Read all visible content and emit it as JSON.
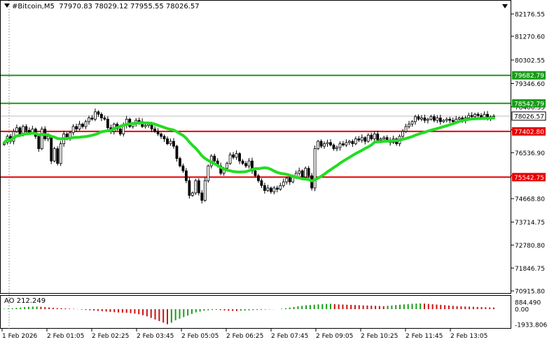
{
  "header": {
    "symbol": "#Bitcoin,M5",
    "ohlc": "77970.83 78029.12 77955.55 78026.57"
  },
  "colors": {
    "bull_candle": "#000000",
    "ma_line": "#22dd22",
    "support_line": "#e60000",
    "resistance_line": "#199b19",
    "ao_up": "#1a9c1a",
    "ao_down": "#cc1111",
    "grid": "#c8c8c8"
  },
  "price_axis": {
    "ticks": [
      "82176.55",
      "81270.60",
      "80302.55",
      "79346.60",
      "78400.35",
      "77470.95",
      "76536.90",
      "75596.85",
      "74668.80",
      "73714.75",
      "72780.80",
      "71846.75",
      "70915.80"
    ],
    "labels": [
      {
        "text": "79682.79",
        "kind": "resistance"
      },
      {
        "text": "78542.79",
        "kind": "resistance"
      },
      {
        "text": "78026.57",
        "kind": "current"
      },
      {
        "text": "77402.80",
        "kind": "support"
      },
      {
        "text": "75542.75",
        "kind": "support"
      }
    ]
  },
  "ao_axis": {
    "title": "AO 212.249",
    "ticks": [
      "884.490",
      "0.00",
      "-1933.806"
    ]
  },
  "time_axis": [
    "1 Feb 2026",
    "2 Feb 01:05",
    "2 Feb 02:25",
    "2 Feb 03:45",
    "2 Feb 05:05",
    "2 Feb 06:25",
    "2 Feb 07:45",
    "2 Feb 09:05",
    "2 Feb 10:25",
    "2 Feb 11:45",
    "2 Feb 13:05"
  ],
  "chart_data": {
    "type": "candlestick",
    "symbol": "#Bitcoin",
    "timeframe": "M5",
    "ylim": [
      70915.8,
      82700
    ],
    "levels": [
      79682.79,
      78542.79,
      77402.8,
      75542.75
    ],
    "current_price": 78026.57,
    "closes": [
      76950,
      77200,
      77000,
      77400,
      77550,
      77300,
      77600,
      77450,
      77350,
      77500,
      77200,
      76700,
      77500,
      77100,
      77200,
      76200,
      76700,
      76100,
      76900,
      77300,
      77100,
      77350,
      77600,
      77500,
      77700,
      77600,
      77800,
      77950,
      77900,
      78200,
      78100,
      77950,
      77900,
      77550,
      77400,
      77700,
      77500,
      77300,
      77650,
      77900,
      77600,
      77700,
      77850,
      77800,
      77600,
      77650,
      77700,
      77500,
      77400,
      77300,
      77200,
      77100,
      76900,
      77000,
      76800,
      76300,
      76000,
      75800,
      75400,
      74800,
      74900,
      75400,
      74900,
      74600,
      75400,
      76000,
      76400,
      76200,
      76000,
      75700,
      75900,
      76100,
      76450,
      76350,
      76500,
      76200,
      76100,
      76000,
      76200,
      75800,
      75600,
      75400,
      75200,
      75000,
      75100,
      74950,
      75100,
      75050,
      75200,
      75350,
      75500,
      75350,
      75550,
      75700,
      75800,
      75550,
      75900,
      75600,
      75100,
      76700,
      77000,
      76800,
      76900,
      76950,
      76850,
      76700,
      76750,
      76900,
      76850,
      76950,
      77000,
      76900,
      77100,
      77050,
      77150,
      77000,
      77250,
      77100,
      77300,
      77050,
      77100,
      77150,
      77050,
      76950,
      77100,
      76900,
      77200,
      77400,
      77600,
      77700,
      77800,
      78000,
      77900,
      77950,
      77850,
      77900,
      78000,
      77850,
      77950,
      77800,
      77850,
      77900,
      77850,
      77800,
      77900,
      77950,
      77850,
      77950,
      78050,
      78000,
      78100,
      78050,
      77950,
      78100,
      77950,
      78000,
      78026.57
    ],
    "ma_period_note": "",
    "ao_values": [
      50,
      80,
      120,
      160,
      200,
      260,
      300,
      320,
      330,
      300,
      260,
      220,
      180,
      140,
      120,
      100,
      60,
      40,
      -20,
      -60,
      -100,
      -140,
      -180,
      -220,
      -260,
      -300,
      -340,
      -380,
      -420,
      -440,
      -460,
      -500,
      -560,
      -640,
      -760,
      -900,
      -1100,
      -1300,
      -1500,
      -1700,
      -1900,
      -1700,
      -1400,
      -1200,
      -1000,
      -800,
      -600,
      -400,
      -300,
      -200,
      -150,
      -100,
      -80,
      -120,
      -160,
      -200,
      -220,
      -240,
      -200,
      -180,
      -150,
      -120,
      -100,
      -80,
      -60,
      -40,
      -20,
      0,
      60,
      120,
      200,
      280,
      360,
      420,
      480,
      520,
      560,
      600,
      640,
      660,
      680,
      640,
      600,
      580,
      560,
      540,
      520,
      500,
      480,
      460,
      440,
      420,
      400,
      380,
      420,
      460,
      520,
      560,
      600,
      640,
      680,
      700,
      720,
      700,
      660,
      620,
      580,
      540,
      500,
      460,
      420,
      380,
      360,
      340,
      320,
      300,
      280,
      260,
      240,
      220,
      212.249
    ]
  }
}
